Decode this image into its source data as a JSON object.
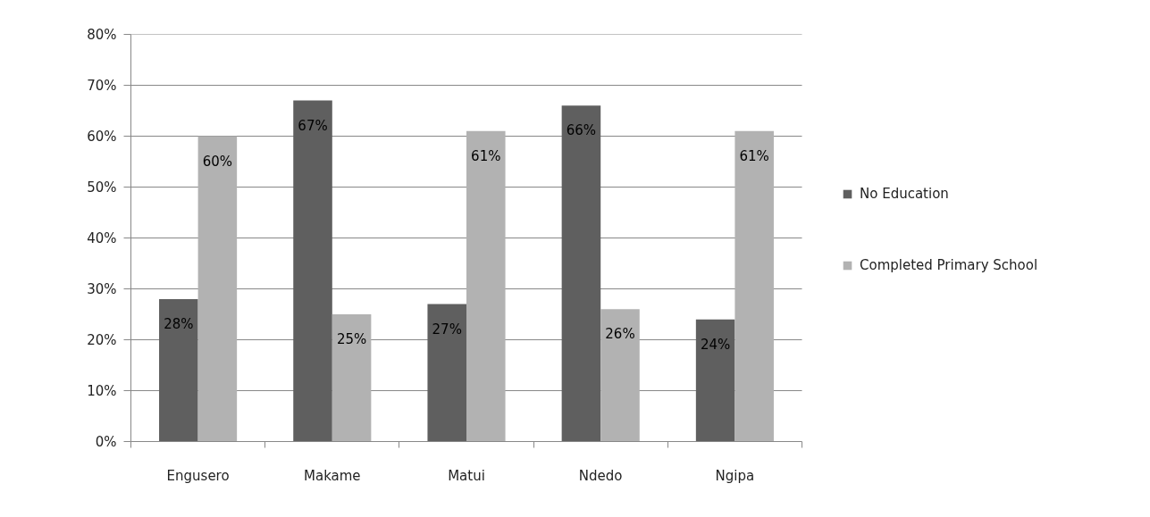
{
  "chart_data": {
    "type": "bar",
    "categories": [
      "Engusero",
      "Makame",
      "Matui",
      "Ndedo",
      "Ngipa"
    ],
    "series": [
      {
        "name": "No Education",
        "color": "#5f5f5f",
        "values": [
          28,
          67,
          27,
          66,
          24
        ],
        "value_labels": [
          "28%",
          "67%",
          "27%",
          "66%",
          "24%"
        ]
      },
      {
        "name": "Completed Primary School",
        "color": "#b2b2b2",
        "values": [
          60,
          25,
          61,
          26,
          61
        ],
        "value_labels": [
          "60%",
          "25%",
          "61%",
          "26%",
          "61%"
        ]
      }
    ],
    "ylim": [
      0,
      80
    ],
    "yticks": [
      {
        "value": 0,
        "label": "0%"
      },
      {
        "value": 10,
        "label": "10%"
      },
      {
        "value": 20,
        "label": "20%"
      },
      {
        "value": 30,
        "label": "30%"
      },
      {
        "value": 40,
        "label": "40%"
      },
      {
        "value": 50,
        "label": "50%"
      },
      {
        "value": 60,
        "label": "60%"
      },
      {
        "value": 70,
        "label": "70%"
      },
      {
        "value": 80,
        "label": "80%"
      }
    ],
    "grid": "y",
    "legend": "right"
  }
}
